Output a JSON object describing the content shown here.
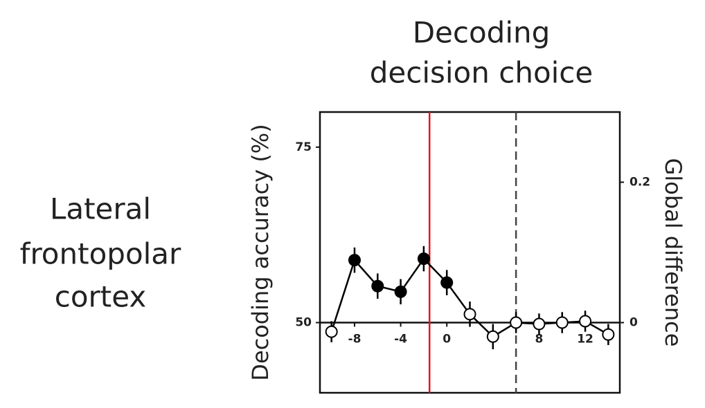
{
  "row_label": [
    "Lateral",
    "frontopolar",
    "cortex"
  ],
  "chart_data": {
    "type": "line",
    "title": [
      "Decoding",
      "decision choice"
    ],
    "ylabel": "Decoding accuracy (%)",
    "y2label": "Global difference",
    "x": [
      -10,
      -8,
      -6,
      -4,
      -2,
      0,
      2,
      4,
      6,
      8,
      10,
      12,
      14
    ],
    "series": [
      {
        "color": "#000000",
        "values": [
          48.7,
          58.9,
          55.2,
          54.4,
          59.1,
          55.7,
          51.2,
          48.0,
          50.0,
          49.8,
          50.0,
          50.2,
          48.3
        ],
        "errors": [
          1.5,
          1.8,
          1.8,
          1.8,
          1.8,
          1.8,
          1.8,
          1.8,
          1.5,
          1.5,
          1.5,
          1.5,
          1.5
        ],
        "marker_fills": [
          "#ffffff",
          "#000000",
          "#000000",
          "#000000",
          "#000000",
          "#000000",
          "#ffffff",
          "#ffffff",
          "#ffffff",
          "#ffffff",
          "#ffffff",
          "#ffffff",
          "#ffffff"
        ]
      }
    ],
    "xlim": [
      -11,
      15
    ],
    "xticks": [
      -8,
      -4,
      0,
      8,
      12
    ],
    "ylim": [
      40,
      80
    ],
    "yticks": [
      50,
      75
    ],
    "y2lim": [
      -0.1,
      0.3
    ],
    "y2ticks": [
      0,
      0.2
    ],
    "vlines": [
      {
        "x": -1.5,
        "color": "#e8141b",
        "dash": false
      },
      {
        "x": 6,
        "color": "#444444",
        "dash": true
      }
    ]
  }
}
